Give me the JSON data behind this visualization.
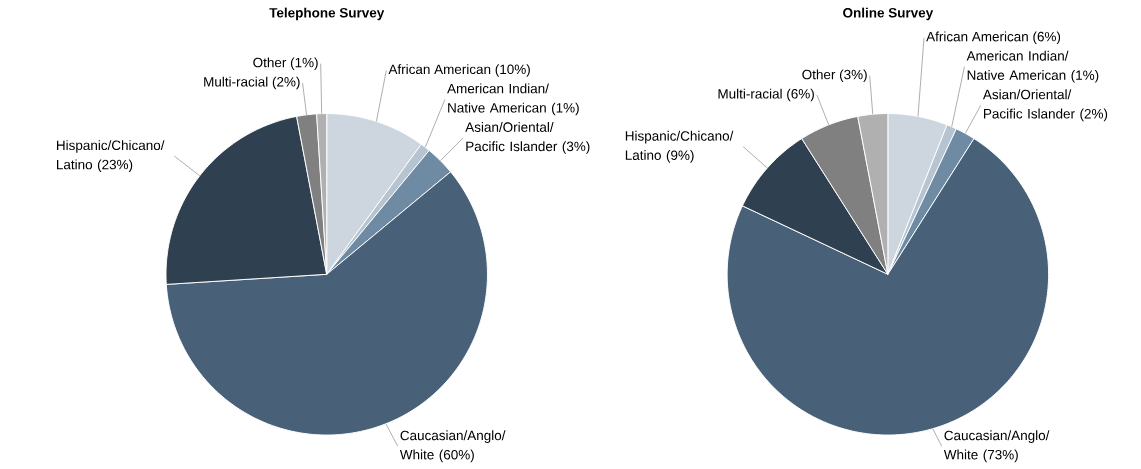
{
  "chart_data": [
    {
      "type": "pie",
      "title": "Telephone Survey",
      "categories": [
        "African American",
        "American Indian/Native American",
        "Asian/Oriental/Pacific Islander",
        "Caucasian/Anglo/White",
        "Hispanic/Chicano/Latino",
        "Multi-racial",
        "Other"
      ],
      "values": [
        10,
        1,
        3,
        60,
        23,
        2,
        1
      ],
      "value_labels": [
        "(10%)",
        "(1%)",
        "(3%)",
        "(60%)",
        "(23%)",
        "(2%)",
        "(1%)"
      ],
      "colors": [
        "#cdd6df",
        "#b6c3d1",
        "#6f8ba4",
        "#486179",
        "#2f4151",
        "#808080",
        "#b0b0b0"
      ]
    },
    {
      "type": "pie",
      "title": "Online Survey",
      "categories": [
        "African American",
        "American Indian/Native American",
        "Asian/Oriental/Pacific Islander",
        "Caucasian/Anglo/White",
        "Hispanic/Chicano/Latino",
        "Multi-racial",
        "Other"
      ],
      "values": [
        6,
        1,
        2,
        73,
        9,
        6,
        3
      ],
      "value_labels": [
        "(6%)",
        "(1%)",
        "(2%)",
        "(73%)",
        "(9%)",
        "(6%)",
        "(3%)"
      ],
      "colors": [
        "#cdd6df",
        "#b6c3d1",
        "#6f8ba4",
        "#486179",
        "#2f4151",
        "#808080",
        "#b0b0b0"
      ]
    }
  ]
}
